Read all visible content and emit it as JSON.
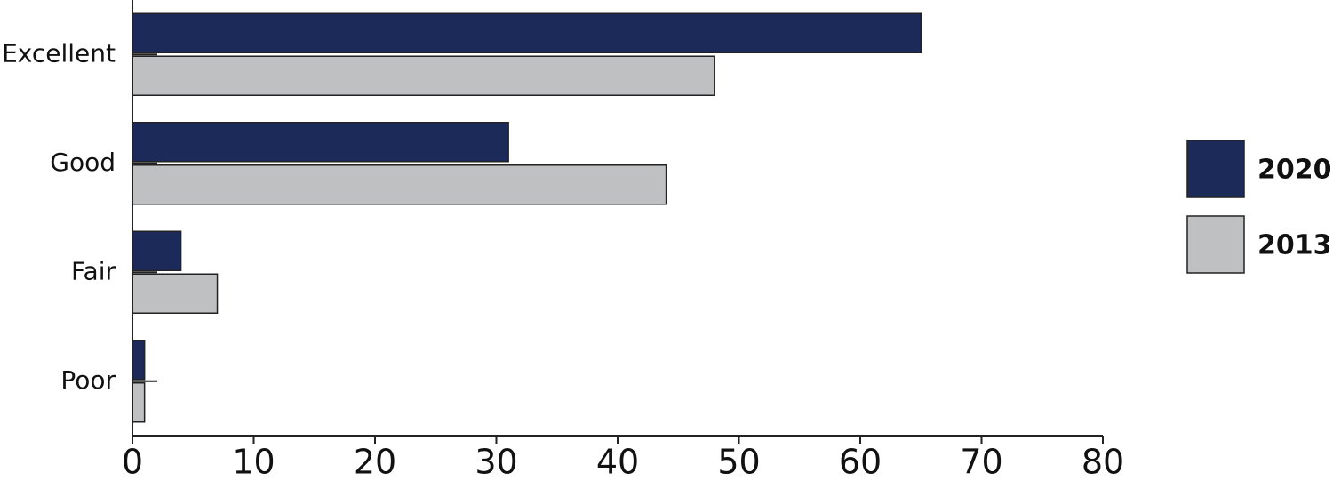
{
  "chart_data": {
    "type": "bar",
    "orientation": "horizontal",
    "categories": [
      "Excellent",
      "Good",
      "Fair",
      "Poor"
    ],
    "series": [
      {
        "name": "2020",
        "color": "#1c2a5a",
        "values": [
          65,
          31,
          4,
          1
        ]
      },
      {
        "name": "2013",
        "color": "#bfc0c2",
        "values": [
          48,
          44,
          7,
          1
        ]
      }
    ],
    "xlim": [
      0,
      80
    ],
    "xticks": [
      0,
      10,
      20,
      30,
      40,
      50,
      60,
      70,
      80
    ],
    "legend": "right"
  }
}
